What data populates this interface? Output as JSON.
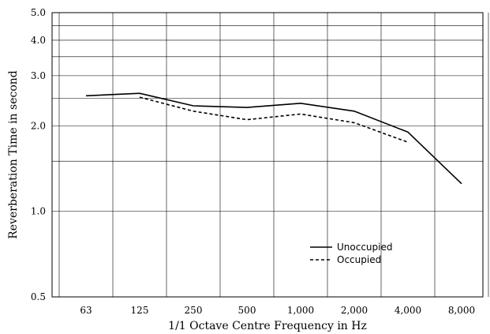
{
  "chart_data": {
    "type": "line",
    "title": "",
    "xlabel": "1/1 Octave Centre Frequency in Hz",
    "ylabel": "Reverberation Time in second",
    "y_scale": "log",
    "ylim": [
      0.5,
      5.0
    ],
    "categories": [
      "63",
      "125",
      "250",
      "500",
      "1,000",
      "2,000",
      "4,000",
      "8,000"
    ],
    "y_ticks": [
      {
        "value": 0.5,
        "label": "0.5"
      },
      {
        "value": 1.0,
        "label": "1.0"
      },
      {
        "value": 2.0,
        "label": "2.0"
      },
      {
        "value": 3.0,
        "label": "3.0"
      },
      {
        "value": 4.0,
        "label": "4.0"
      },
      {
        "value": 5.0,
        "label": "5.0"
      }
    ],
    "y_gridlines": [
      1.0,
      1.5,
      2.0,
      2.5,
      3.0,
      3.5,
      4.0,
      4.5
    ],
    "grid": true,
    "legend_position": "lower-right",
    "series": [
      {
        "name": "Unoccupied",
        "style": "solid",
        "color": "#000000",
        "values": [
          2.55,
          2.6,
          2.35,
          2.32,
          2.4,
          2.25,
          1.9,
          1.25
        ]
      },
      {
        "name": "Occupied",
        "style": "dashed",
        "color": "#000000",
        "values": [
          null,
          2.52,
          2.25,
          2.1,
          2.2,
          2.05,
          1.75,
          null
        ]
      }
    ]
  }
}
